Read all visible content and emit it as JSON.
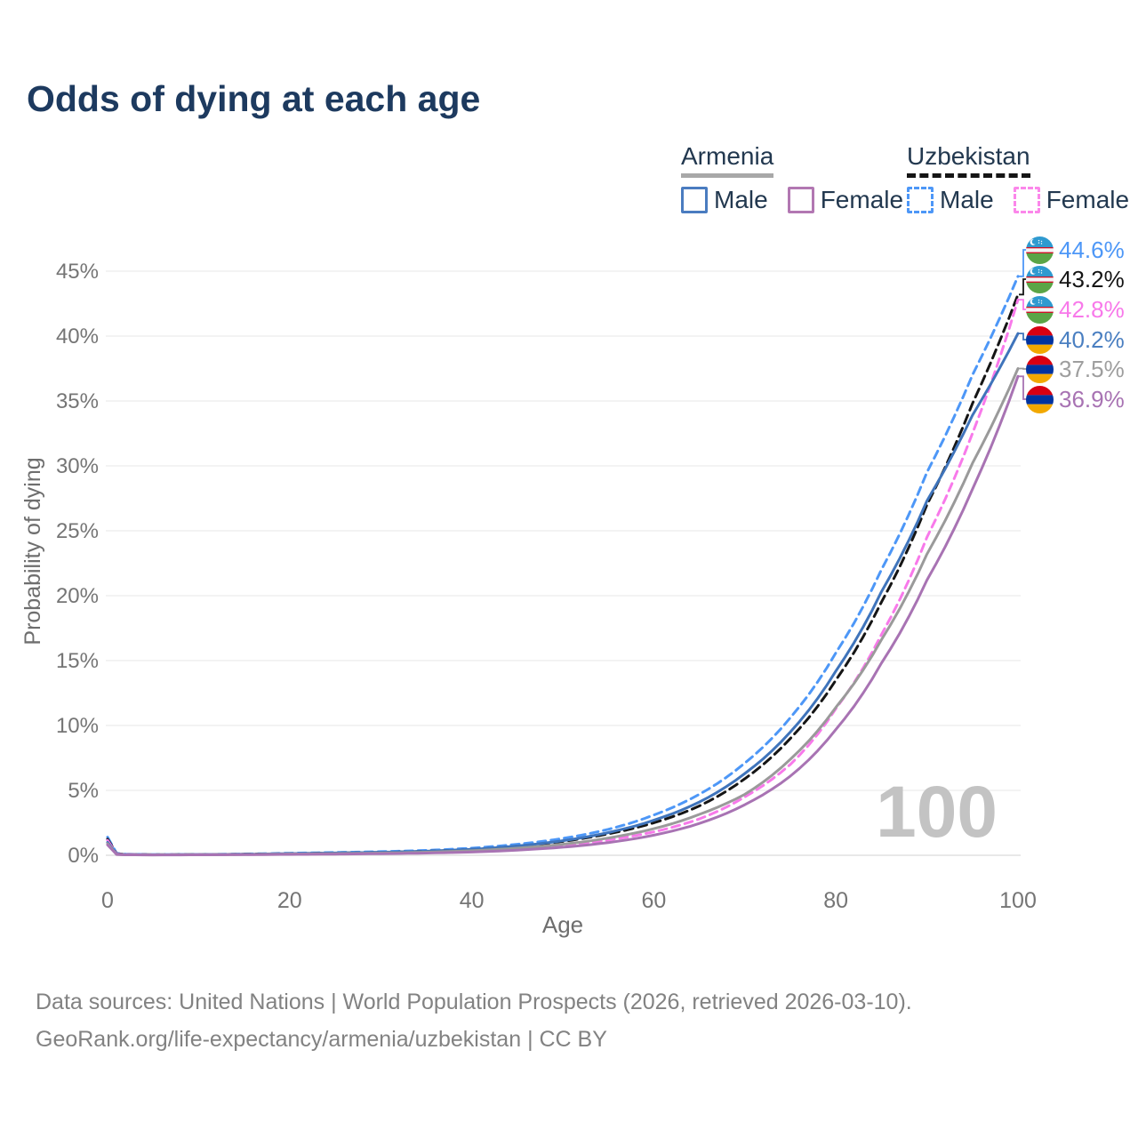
{
  "title": "Odds of dying at each age",
  "legend": {
    "groups": [
      {
        "country": "Armenia",
        "line_style": "solid",
        "underline_color": "#a8a8a8",
        "items": [
          {
            "label": "Male",
            "color": "#4a7cc0"
          },
          {
            "label": "Female",
            "color": "#b277b2"
          }
        ]
      },
      {
        "country": "Uzbekistan",
        "line_style": "dashed",
        "underline_color": "#151515",
        "items": [
          {
            "label": "Male",
            "color": "#4d97f7"
          },
          {
            "label": "Female",
            "color": "#fb87ea"
          }
        ]
      }
    ]
  },
  "watermark": "100",
  "footer": {
    "line1": "Data sources: United Nations | World Population Prospects (2026, retrieved 2026-03-10).",
    "line2": "GeoRank.org/life-expectancy/armenia/uzbekistan | CC BY"
  },
  "chart_data": {
    "type": "line",
    "title": "Odds of dying at each age",
    "xlabel": "Age",
    "ylabel": "Probability of dying",
    "x_ticks": [
      0,
      20,
      40,
      60,
      80,
      100
    ],
    "y_ticks_percent": [
      0,
      5,
      10,
      15,
      20,
      25,
      30,
      35,
      40,
      45
    ],
    "xlim": [
      0,
      100
    ],
    "ylim_percent": [
      0,
      45
    ],
    "grid": "horizontal",
    "legend_position": "top-right",
    "ages": [
      0,
      1,
      2,
      5,
      10,
      15,
      20,
      25,
      30,
      35,
      40,
      45,
      50,
      55,
      60,
      65,
      70,
      75,
      80,
      85,
      90,
      95,
      100
    ],
    "series": [
      {
        "id": "uzbekistan-male",
        "name": "Uzbekistan Male",
        "country": "Uzbekistan",
        "sex": "male",
        "color": "#4d97f7",
        "dashed": true,
        "end_label": "44.6%",
        "end_value_percent": 44.6,
        "flag": "uzbekistan",
        "label_color": "#4d97f7",
        "values_percent": [
          1.4,
          0.15,
          0.08,
          0.05,
          0.06,
          0.1,
          0.16,
          0.22,
          0.28,
          0.38,
          0.55,
          0.85,
          1.3,
          2.0,
          3.1,
          4.7,
          7.1,
          10.6,
          15.6,
          22.0,
          29.5,
          37.0,
          44.6
        ]
      },
      {
        "id": "uzbekistan-total",
        "name": "Uzbekistan",
        "country": "Uzbekistan",
        "sex": "both",
        "color": "#151515",
        "dashed": true,
        "end_label": "43.2%",
        "end_value_percent": 43.2,
        "flag": "uzbekistan",
        "label_color": "#151515",
        "values_percent": [
          1.25,
          0.12,
          0.07,
          0.04,
          0.05,
          0.08,
          0.12,
          0.17,
          0.22,
          0.31,
          0.45,
          0.7,
          1.07,
          1.65,
          2.5,
          3.8,
          5.9,
          9.0,
          13.5,
          19.5,
          27.0,
          34.8,
          43.2
        ]
      },
      {
        "id": "uzbekistan-female",
        "name": "Uzbekistan Female",
        "country": "Uzbekistan",
        "sex": "female",
        "color": "#f879ea",
        "dashed": true,
        "end_label": "42.8%",
        "end_value_percent": 42.8,
        "flag": "uzbekistan",
        "label_color": "#f879ea",
        "values_percent": [
          1.15,
          0.1,
          0.06,
          0.035,
          0.045,
          0.06,
          0.08,
          0.11,
          0.15,
          0.21,
          0.32,
          0.49,
          0.76,
          1.18,
          1.8,
          2.8,
          4.5,
          7.0,
          11.3,
          17.0,
          24.5,
          32.5,
          42.8
        ]
      },
      {
        "id": "armenia-male",
        "name": "Armenia Male",
        "country": "Armenia",
        "sex": "male",
        "color": "#3f74bb",
        "dashed": false,
        "end_label": "40.2%",
        "end_value_percent": 40.2,
        "flag": "armenia",
        "label_color": "#4a7fc1",
        "values_percent": [
          1.0,
          0.08,
          0.05,
          0.04,
          0.05,
          0.08,
          0.13,
          0.18,
          0.23,
          0.31,
          0.46,
          0.72,
          1.12,
          1.75,
          2.7,
          4.1,
          6.3,
          9.5,
          14.2,
          20.3,
          27.3,
          33.9,
          40.2
        ]
      },
      {
        "id": "armenia-total",
        "name": "Armenia",
        "country": "Armenia",
        "sex": "both",
        "color": "#9a9a9a",
        "dashed": false,
        "end_label": "37.5%",
        "end_value_percent": 37.5,
        "flag": "armenia",
        "label_color": "#9e9e9e",
        "values_percent": [
          0.9,
          0.07,
          0.04,
          0.03,
          0.04,
          0.06,
          0.1,
          0.13,
          0.17,
          0.24,
          0.35,
          0.55,
          0.85,
          1.33,
          2.05,
          3.15,
          4.7,
          7.4,
          11.4,
          16.6,
          23.2,
          30.2,
          37.5
        ]
      },
      {
        "id": "armenia-female",
        "name": "Armenia Female",
        "country": "Armenia",
        "sex": "female",
        "color": "#a873b3",
        "dashed": false,
        "end_label": "36.9%",
        "end_value_percent": 36.9,
        "flag": "armenia",
        "label_color": "#a873b3",
        "values_percent": [
          0.8,
          0.06,
          0.035,
          0.025,
          0.035,
          0.05,
          0.07,
          0.09,
          0.12,
          0.17,
          0.25,
          0.4,
          0.62,
          0.98,
          1.55,
          2.45,
          3.9,
          6.1,
          9.7,
          14.8,
          21.2,
          28.2,
          36.9
        ]
      }
    ]
  }
}
